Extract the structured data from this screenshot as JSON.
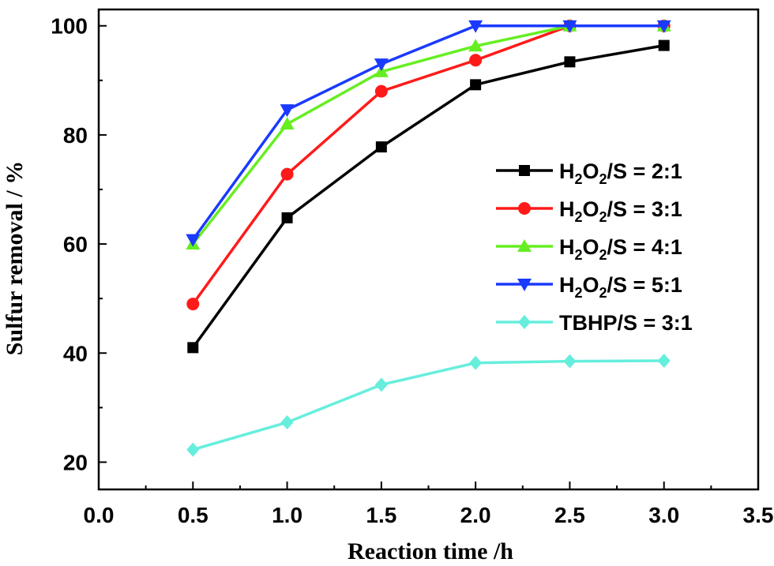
{
  "chart_data": {
    "type": "line",
    "xlabel": "Reaction time /h",
    "ylabel": "Sulfur removal / %",
    "xlim": [
      0.0,
      3.5
    ],
    "ylim": [
      15,
      103
    ],
    "x_ticks": [
      "0.0",
      "0.5",
      "1.0",
      "1.5",
      "2.0",
      "2.5",
      "3.0",
      "3.5"
    ],
    "x_tick_values": [
      0.0,
      0.5,
      1.0,
      1.5,
      2.0,
      2.5,
      3.0,
      3.5
    ],
    "y_ticks": [
      "20",
      "40",
      "60",
      "80",
      "100"
    ],
    "y_tick_values": [
      20,
      40,
      60,
      80,
      100
    ],
    "grid": false,
    "legend_position": "right",
    "x": [
      0.5,
      1.0,
      1.5,
      2.0,
      2.5,
      3.0
    ],
    "series": [
      {
        "name": "H2O2/S = 2:1",
        "label_parts": [
          [
            "H",
            false
          ],
          [
            "2",
            true
          ],
          [
            "O",
            false
          ],
          [
            "2",
            true
          ],
          [
            "/S = 2:1",
            false
          ]
        ],
        "color": "#000000",
        "marker": "square",
        "values": [
          41.0,
          64.8,
          77.8,
          89.2,
          93.4,
          96.4
        ]
      },
      {
        "name": "H2O2/S = 3:1",
        "label_parts": [
          [
            "H",
            false
          ],
          [
            "2",
            true
          ],
          [
            "O",
            false
          ],
          [
            "2",
            true
          ],
          [
            "/S = 3:1",
            false
          ]
        ],
        "color": "#ff1a1a",
        "marker": "circle",
        "values": [
          49.0,
          72.8,
          88.0,
          93.7,
          100.0,
          100.0
        ]
      },
      {
        "name": "H2O2/S = 4:1",
        "label_parts": [
          [
            "H",
            false
          ],
          [
            "2",
            true
          ],
          [
            "O",
            false
          ],
          [
            "2",
            true
          ],
          [
            "/S = 4:1",
            false
          ]
        ],
        "color": "#66ee22",
        "marker": "triangle-up",
        "values": [
          60.0,
          82.0,
          91.6,
          96.3,
          100.0,
          100.0
        ]
      },
      {
        "name": "H2O2/S = 5:1",
        "label_parts": [
          [
            "H",
            false
          ],
          [
            "2",
            true
          ],
          [
            "O",
            false
          ],
          [
            "2",
            true
          ],
          [
            "/S = 5:1",
            false
          ]
        ],
        "color": "#1a3aff",
        "marker": "triangle-down",
        "values": [
          60.8,
          84.6,
          93.0,
          100.0,
          100.0,
          100.0
        ]
      },
      {
        "name": "TBHP/S = 3:1",
        "label_parts": [
          [
            "TBHP/S = 3:1",
            false
          ]
        ],
        "color": "#66eedd",
        "marker": "diamond",
        "values": [
          22.3,
          27.3,
          34.2,
          38.2,
          38.5,
          38.6
        ]
      }
    ]
  }
}
